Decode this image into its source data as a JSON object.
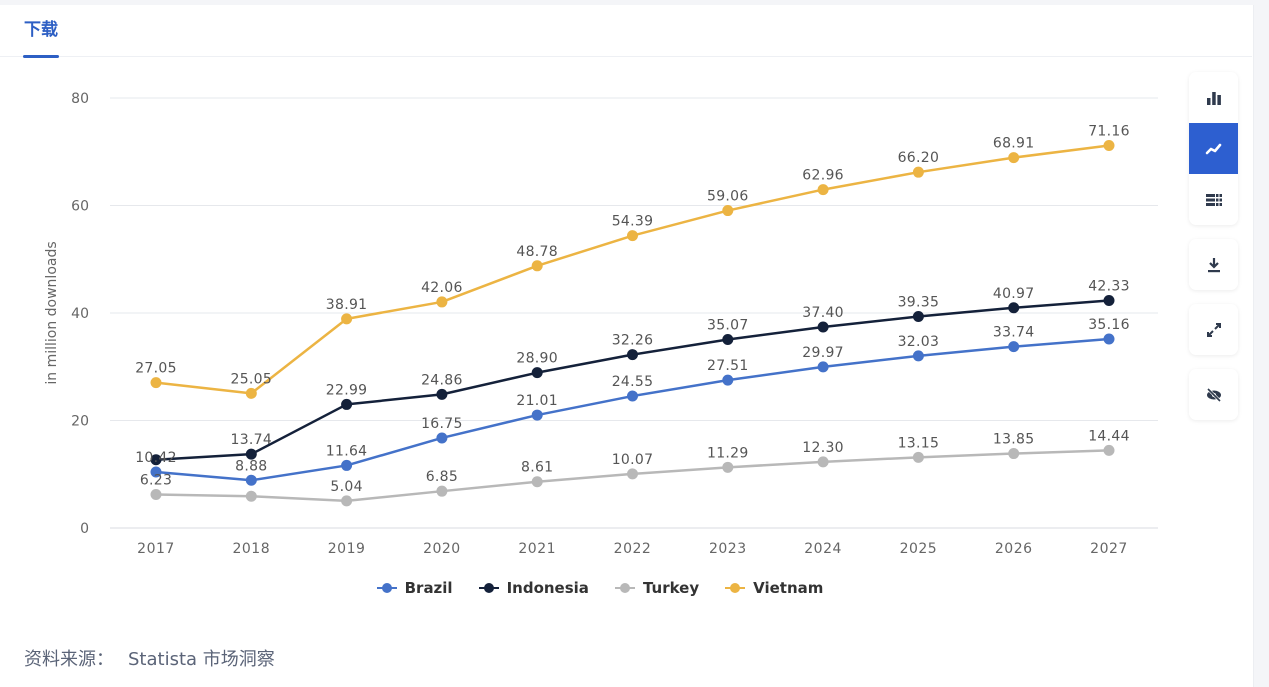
{
  "tabs": [
    {
      "label": "下载",
      "active": true
    }
  ],
  "source": {
    "label": "资料来源：",
    "value": "Statista 市场洞察"
  },
  "toolbar": {
    "chart_types": [
      {
        "icon": "bar-chart-icon",
        "active": false
      },
      {
        "icon": "line-chart-icon",
        "active": true
      },
      {
        "icon": "table-icon",
        "active": false
      }
    ],
    "actions": [
      {
        "icon": "download-icon"
      },
      {
        "icon": "expand-icon"
      },
      {
        "icon": "hide-icon"
      }
    ]
  },
  "colors": {
    "Brazil": "#4472c9",
    "Indonesia": "#14213a",
    "Turkey": "#b8b8b8",
    "Vietnam": "#ecb443"
  },
  "chart_data": {
    "type": "line",
    "title": "",
    "xlabel": "",
    "ylabel": "in million downloads",
    "ylim": [
      0,
      80
    ],
    "yticks": [
      0,
      20,
      40,
      60,
      80
    ],
    "grid": true,
    "legend_position": "bottom-center",
    "categories": [
      "2017",
      "2018",
      "2019",
      "2020",
      "2021",
      "2022",
      "2023",
      "2024",
      "2025",
      "2026",
      "2027"
    ],
    "series": [
      {
        "name": "Brazil",
        "values": [
          10.42,
          8.88,
          11.64,
          16.75,
          21.01,
          24.55,
          27.51,
          29.97,
          32.03,
          33.74,
          35.16
        ],
        "labels": [
          "10.42",
          "8.88",
          "11.64",
          "16.75",
          "21.01",
          "24.55",
          "27.51",
          "29.97",
          "32.03",
          "33.74",
          "35.16"
        ]
      },
      {
        "name": "Indonesia",
        "values": [
          12.7,
          13.74,
          22.99,
          24.86,
          28.9,
          32.26,
          35.07,
          37.4,
          39.35,
          40.97,
          42.33
        ],
        "labels": [
          "",
          "13.74",
          "22.99",
          "24.86",
          "28.90",
          "32.26",
          "35.07",
          "37.40",
          "39.35",
          "40.97",
          "42.33"
        ]
      },
      {
        "name": "Turkey",
        "values": [
          6.23,
          5.9,
          5.04,
          6.85,
          8.61,
          10.07,
          11.29,
          12.3,
          13.15,
          13.85,
          14.44
        ],
        "labels": [
          "6.23",
          "",
          "5.04",
          "6.85",
          "8.61",
          "10.07",
          "11.29",
          "12.30",
          "13.15",
          "13.85",
          "14.44"
        ]
      },
      {
        "name": "Vietnam",
        "values": [
          27.05,
          25.05,
          38.91,
          42.06,
          48.78,
          54.39,
          59.06,
          62.96,
          66.2,
          68.91,
          71.16
        ],
        "labels": [
          "27.05",
          "25.05",
          "38.91",
          "42.06",
          "48.78",
          "54.39",
          "59.06",
          "62.96",
          "66.20",
          "68.91",
          "71.16"
        ]
      }
    ]
  }
}
